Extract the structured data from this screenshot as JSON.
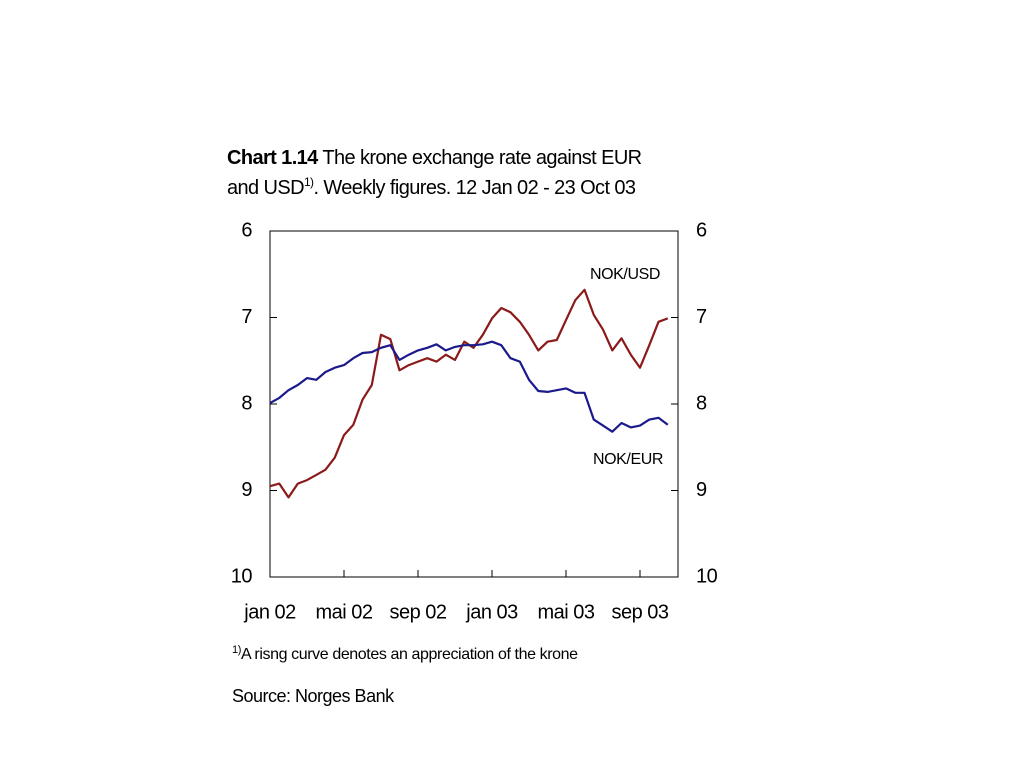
{
  "chart_data": {
    "type": "line",
    "title_bold": "Chart 1.14",
    "title_line1": "The krone exchange rate against EUR",
    "title_line2_start": "and USD",
    "title_sup": "1)",
    "title_line2_end": ". Weekly figures. 12 Jan 02 - 23 Oct 03",
    "footnote_sup": "1)",
    "footnote": "A risng curve denotes an appreciation of the krone",
    "source": "Source: Norges Bank",
    "x": [
      "jan 02",
      null,
      null,
      null,
      null,
      null,
      null,
      null,
      "mai 02",
      null,
      null,
      null,
      null,
      null,
      null,
      null,
      "sep 02",
      null,
      null,
      null,
      null,
      null,
      null,
      null,
      "jan 03",
      null,
      null,
      null,
      null,
      null,
      null,
      null,
      "mai 03",
      null,
      null,
      null,
      null,
      null,
      null,
      null,
      "sep 03",
      null,
      null,
      null
    ],
    "series": [
      {
        "name": "NOK/USD",
        "color": "#8b1a1a",
        "values": [
          8.95,
          8.92,
          9.08,
          8.92,
          8.88,
          8.82,
          8.76,
          8.62,
          8.36,
          8.24,
          7.95,
          7.78,
          7.2,
          7.25,
          7.61,
          7.55,
          7.51,
          7.47,
          7.51,
          7.43,
          7.49,
          7.28,
          7.35,
          7.2,
          7.01,
          6.89,
          6.94,
          7.05,
          7.2,
          7.38,
          7.28,
          7.26,
          7.03,
          6.8,
          6.68,
          6.97,
          7.14,
          7.38,
          7.24,
          7.43,
          7.58,
          7.32,
          7.05,
          7.01
        ]
      },
      {
        "name": "NOK/EUR",
        "color": "#1a1a8b",
        "values": [
          7.99,
          7.93,
          7.84,
          7.78,
          7.7,
          7.72,
          7.63,
          7.58,
          7.55,
          7.47,
          7.41,
          7.4,
          7.35,
          7.32,
          7.49,
          7.43,
          7.38,
          7.35,
          7.31,
          7.38,
          7.34,
          7.32,
          7.32,
          7.31,
          7.28,
          7.32,
          7.47,
          7.51,
          7.72,
          7.85,
          7.86,
          7.84,
          7.82,
          7.87,
          7.87,
          8.18,
          8.25,
          8.32,
          8.22,
          8.27,
          8.25,
          8.18,
          8.16,
          8.24
        ]
      }
    ],
    "ylim": [
      6,
      10
    ],
    "yticks": [
      6,
      7,
      8,
      9,
      10
    ],
    "y_inverted": true,
    "grid": false
  }
}
